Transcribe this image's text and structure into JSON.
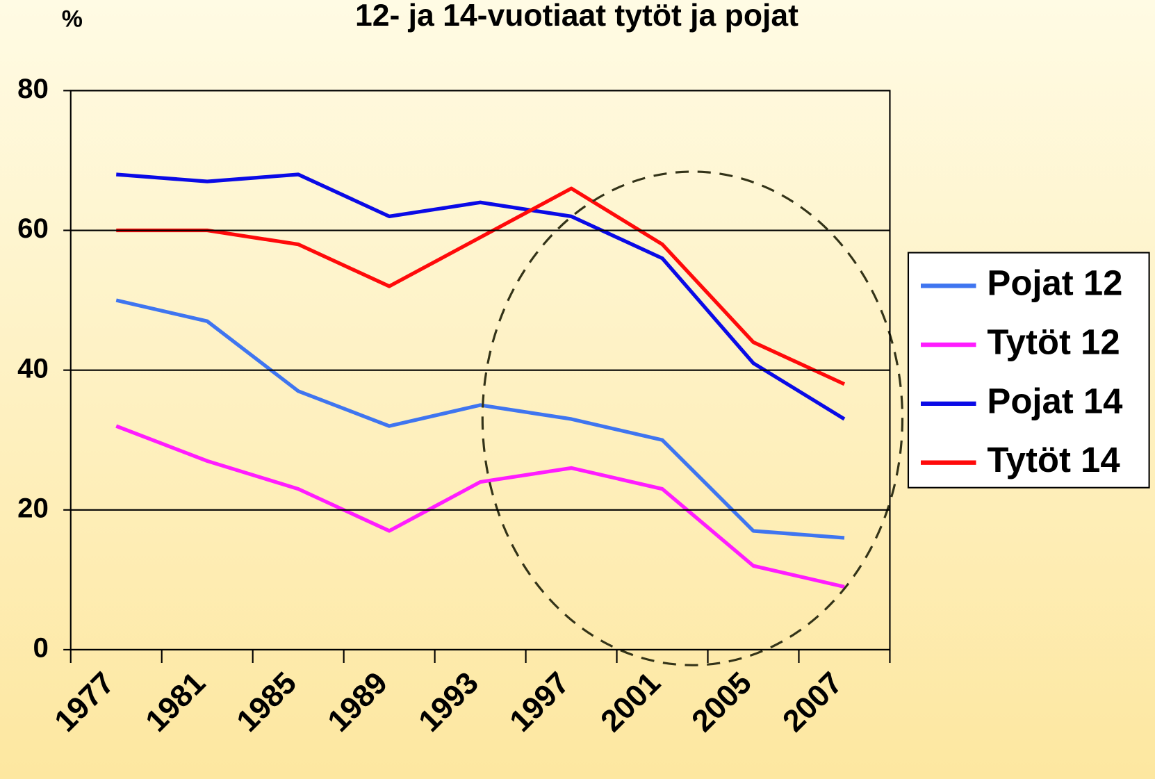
{
  "chart_data": {
    "type": "line",
    "title": "12- ja 14-vuotiaat tytöt ja pojat",
    "y_label": "%",
    "categories": [
      "1977",
      "1981",
      "1985",
      "1989",
      "1993",
      "1997",
      "2001",
      "2005",
      "2007"
    ],
    "series": [
      {
        "name": "Pojat 12",
        "color": "#3f75f0",
        "values": [
          50,
          47,
          37,
          32,
          35,
          33,
          30,
          17,
          16
        ]
      },
      {
        "name": "Tytöt 12",
        "color": "#ff1cff",
        "values": [
          32,
          27,
          23,
          17,
          24,
          26,
          23,
          12,
          9
        ]
      },
      {
        "name": "Pojat 14",
        "color": "#0a0ae6",
        "values": [
          68,
          67,
          68,
          62,
          64,
          62,
          56,
          41,
          33
        ]
      },
      {
        "name": "Tytöt 14",
        "color": "#ff0a0a",
        "values": [
          60,
          60,
          58,
          52,
          59,
          66,
          58,
          44,
          38
        ]
      }
    ],
    "ylim": [
      0,
      80
    ],
    "yticks": [
      0,
      20,
      40,
      60,
      80
    ],
    "grid": true,
    "legend": "right"
  }
}
